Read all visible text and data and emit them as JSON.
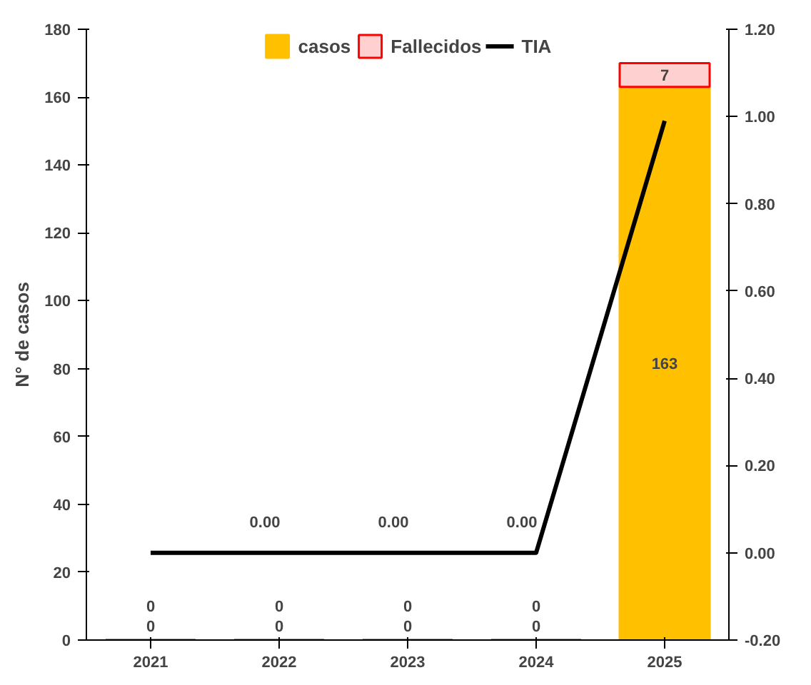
{
  "chart_data": {
    "type": "bar",
    "ylabel": "N° de casos",
    "categories": [
      "2021",
      "2022",
      "2023",
      "2024",
      "2025"
    ],
    "stacked": true,
    "series": [
      {
        "name": "casos",
        "color": "#ffc000",
        "values": [
          0,
          0,
          0,
          0,
          163
        ]
      },
      {
        "name": "Fallecidos",
        "color": "#ff0000",
        "values": [
          0,
          0,
          0,
          0,
          7
        ]
      },
      {
        "name": "TIA",
        "type": "line",
        "axis": "y2",
        "color": "#000000",
        "values": [
          0,
          0,
          0,
          0,
          0.99
        ],
        "value_labels": [
          null,
          "0.00",
          "0.00",
          "0.00",
          null
        ]
      }
    ],
    "data_labels": true,
    "ylim": [
      0,
      180
    ],
    "yticks": [
      0,
      20,
      40,
      60,
      80,
      100,
      120,
      140,
      160,
      180
    ],
    "y2lim": [
      -0.2,
      1.2
    ],
    "y2ticks": [
      {
        "value": -0.2,
        "label": "-0.20"
      },
      {
        "value": 0,
        "label": "0.00"
      },
      {
        "value": 0.2,
        "label": "0.20"
      },
      {
        "value": 0.4,
        "label": "0.40"
      },
      {
        "value": 0.6,
        "label": "0.60"
      },
      {
        "value": 0.8,
        "label": "0.80"
      },
      {
        "value": 1.0,
        "label": "1.00"
      },
      {
        "value": 1.2,
        "label": "1.20"
      }
    ],
    "legend": "top",
    "grid": false
  }
}
